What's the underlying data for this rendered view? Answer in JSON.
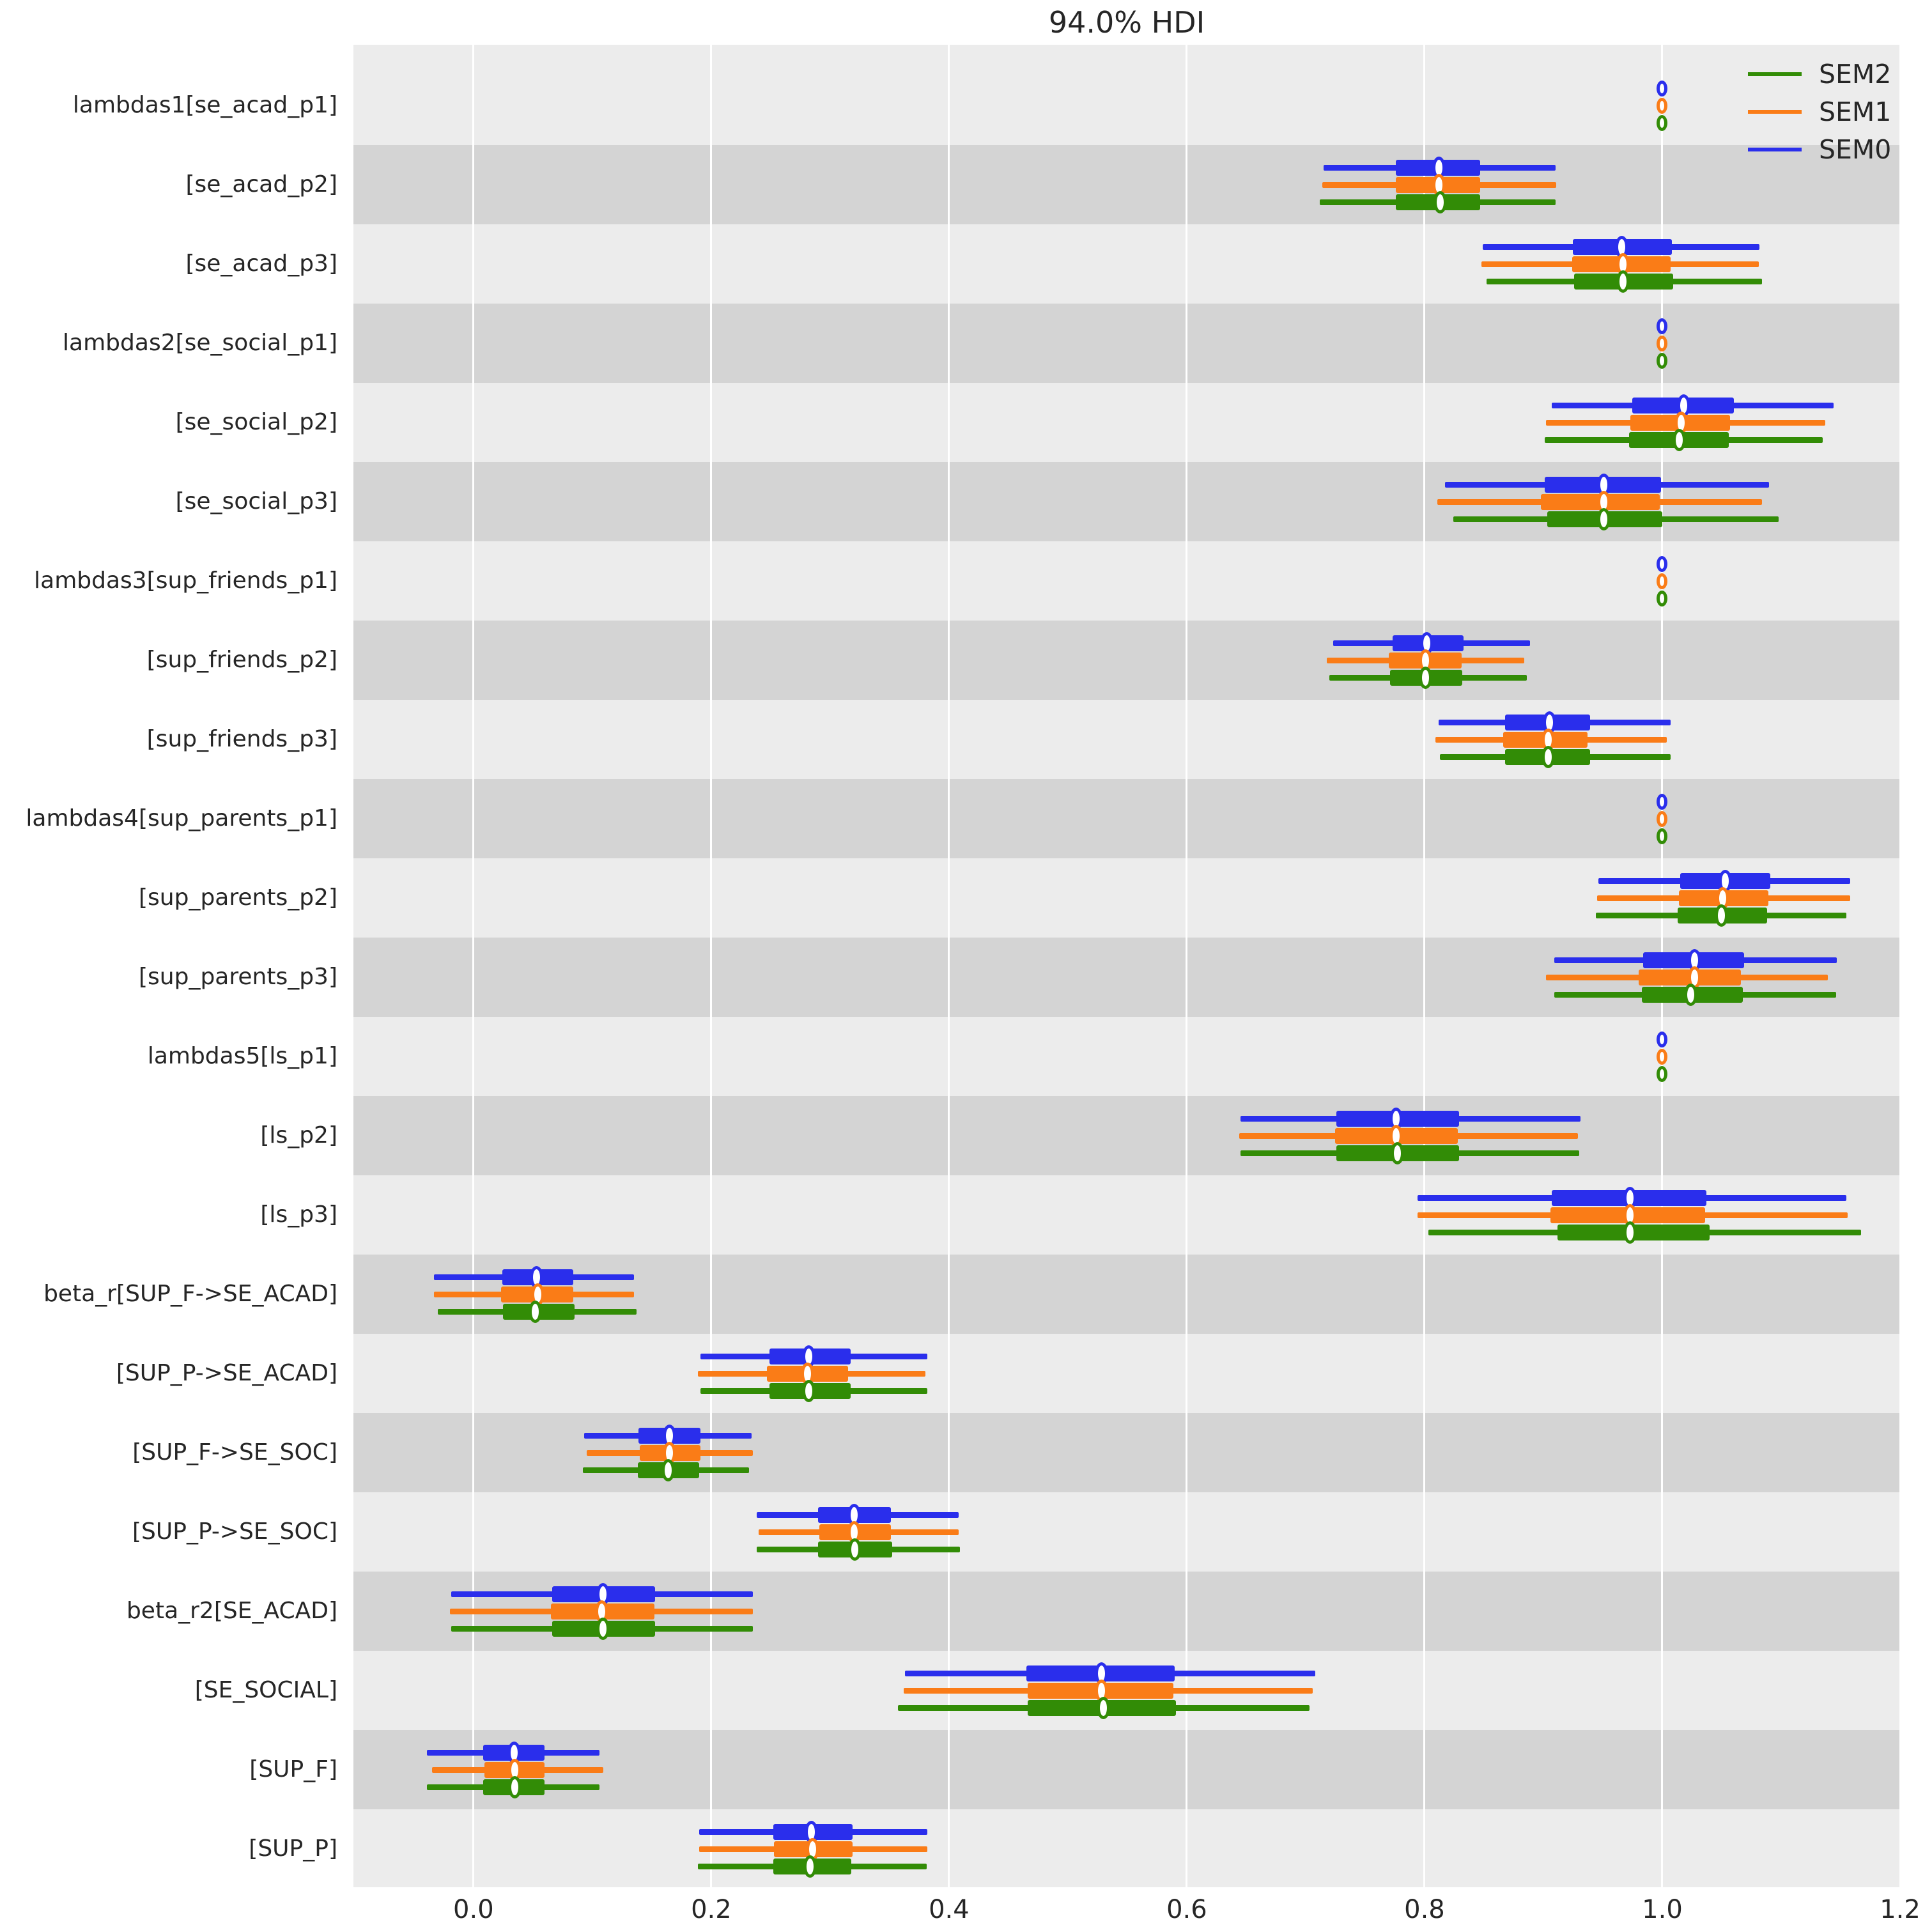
{
  "title": "94.0% HDI",
  "colors": {
    "SEM0": "#2a2eec",
    "SEM1": "#fa7c17",
    "SEM2": "#328c06",
    "band_light": "#ececec",
    "band_dark": "#d4d4d4",
    "grid": "#ffffff",
    "text": "#262626"
  },
  "legend": [
    {
      "label": "SEM2",
      "color_key": "SEM2"
    },
    {
      "label": "SEM1",
      "color_key": "SEM1"
    },
    {
      "label": "SEM0",
      "color_key": "SEM0"
    }
  ],
  "chart_data": {
    "type": "forest",
    "title": "94.0% HDI",
    "interval_probability": "94.0%",
    "legend_position": "upper right",
    "xlabel": "",
    "ylabel": "",
    "xlim": [
      -0.101,
      1.2
    ],
    "x_ticks": [
      "0.0",
      "0.2",
      "0.4",
      "0.6",
      "0.8",
      "1.0",
      "1.2"
    ],
    "x_tick_values": [
      0.0,
      0.2,
      0.4,
      0.6,
      0.8,
      1.0,
      1.2
    ],
    "grid": "vertical-white",
    "model_draw_order": [
      "SEM0",
      "SEM1",
      "SEM2"
    ],
    "rows": [
      {
        "label": "lambdas1[se_acad_p1]",
        "kind": "point",
        "models": {
          "SEM0": {
            "value": 1.0
          },
          "SEM1": {
            "value": 1.0
          },
          "SEM2": {
            "value": 1.0
          }
        }
      },
      {
        "label": "[se_acad_p2]",
        "kind": "interval",
        "models": {
          "SEM0": {
            "hdi": [
              0.715,
              0.91
            ],
            "quartile": [
              0.776,
              0.847
            ],
            "median": 0.812
          },
          "SEM1": {
            "hdi": [
              0.714,
              0.911
            ],
            "quartile": [
              0.776,
              0.847
            ],
            "median": 0.812
          },
          "SEM2": {
            "hdi": [
              0.712,
              0.91
            ],
            "quartile": [
              0.776,
              0.847
            ],
            "median": 0.813
          }
        }
      },
      {
        "label": "[se_acad_p3]",
        "kind": "interval",
        "models": {
          "SEM0": {
            "hdi": [
              0.849,
              1.082
            ],
            "quartile": [
              0.925,
              1.008
            ],
            "median": 0.966
          },
          "SEM1": {
            "hdi": [
              0.848,
              1.081
            ],
            "quartile": [
              0.924,
              1.007
            ],
            "median": 0.967
          },
          "SEM2": {
            "hdi": [
              0.852,
              1.084
            ],
            "quartile": [
              0.926,
              1.009
            ],
            "median": 0.967
          }
        }
      },
      {
        "label": "lambdas2[se_social_p1]",
        "kind": "point",
        "models": {
          "SEM0": {
            "value": 1.0
          },
          "SEM1": {
            "value": 1.0
          },
          "SEM2": {
            "value": 1.0
          }
        }
      },
      {
        "label": "[se_social_p2]",
        "kind": "interval",
        "models": {
          "SEM0": {
            "hdi": [
              0.907,
              1.144
            ],
            "quartile": [
              0.975,
              1.06
            ],
            "median": 1.018
          },
          "SEM1": {
            "hdi": [
              0.902,
              1.137
            ],
            "quartile": [
              0.973,
              1.057
            ],
            "median": 1.016
          },
          "SEM2": {
            "hdi": [
              0.901,
              1.135
            ],
            "quartile": [
              0.972,
              1.056
            ],
            "median": 1.014
          }
        }
      },
      {
        "label": "[se_social_p3]",
        "kind": "interval",
        "models": {
          "SEM0": {
            "hdi": [
              0.817,
              1.09
            ],
            "quartile": [
              0.901,
              0.999
            ],
            "median": 0.951
          },
          "SEM1": {
            "hdi": [
              0.811,
              1.084
            ],
            "quartile": [
              0.898,
              0.998
            ],
            "median": 0.951
          },
          "SEM2": {
            "hdi": [
              0.824,
              1.098
            ],
            "quartile": [
              0.903,
              1.0
            ],
            "median": 0.951
          }
        }
      },
      {
        "label": "lambdas3[sup_friends_p1]",
        "kind": "point",
        "models": {
          "SEM0": {
            "value": 1.0
          },
          "SEM1": {
            "value": 1.0
          },
          "SEM2": {
            "value": 1.0
          }
        }
      },
      {
        "label": "[sup_friends_p2]",
        "kind": "interval",
        "models": {
          "SEM0": {
            "hdi": [
              0.723,
              0.889
            ],
            "quartile": [
              0.773,
              0.833
            ],
            "median": 0.802
          },
          "SEM1": {
            "hdi": [
              0.718,
              0.884
            ],
            "quartile": [
              0.77,
              0.831
            ],
            "median": 0.801
          },
          "SEM2": {
            "hdi": [
              0.72,
              0.886
            ],
            "quartile": [
              0.771,
              0.832
            ],
            "median": 0.801
          }
        }
      },
      {
        "label": "[sup_friends_p3]",
        "kind": "interval",
        "models": {
          "SEM0": {
            "hdi": [
              0.812,
              1.007
            ],
            "quartile": [
              0.868,
              0.939
            ],
            "median": 0.905
          },
          "SEM1": {
            "hdi": [
              0.809,
              1.004
            ],
            "quartile": [
              0.866,
              0.937
            ],
            "median": 0.904
          },
          "SEM2": {
            "hdi": [
              0.813,
              1.007
            ],
            "quartile": [
              0.868,
              0.939
            ],
            "median": 0.904
          }
        }
      },
      {
        "label": "lambdas4[sup_parents_p1]",
        "kind": "point",
        "models": {
          "SEM0": {
            "value": 1.0
          },
          "SEM1": {
            "value": 1.0
          },
          "SEM2": {
            "value": 1.0
          }
        }
      },
      {
        "label": "[sup_parents_p2]",
        "kind": "interval",
        "models": {
          "SEM0": {
            "hdi": [
              0.946,
              1.158
            ],
            "quartile": [
              1.015,
              1.091
            ],
            "median": 1.053
          },
          "SEM1": {
            "hdi": [
              0.945,
              1.158
            ],
            "quartile": [
              1.014,
              1.089
            ],
            "median": 1.051
          },
          "SEM2": {
            "hdi": [
              0.944,
              1.155
            ],
            "quartile": [
              1.013,
              1.088
            ],
            "median": 1.05
          }
        }
      },
      {
        "label": "[sup_parents_p3]",
        "kind": "interval",
        "models": {
          "SEM0": {
            "hdi": [
              0.909,
              1.147
            ],
            "quartile": [
              0.984,
              1.069
            ],
            "median": 1.027
          },
          "SEM1": {
            "hdi": [
              0.902,
              1.139
            ],
            "quartile": [
              0.98,
              1.066
            ],
            "median": 1.027
          },
          "SEM2": {
            "hdi": [
              0.909,
              1.146
            ],
            "quartile": [
              0.983,
              1.068
            ],
            "median": 1.024
          }
        }
      },
      {
        "label": "lambdas5[ls_p1]",
        "kind": "point",
        "models": {
          "SEM0": {
            "value": 1.0
          },
          "SEM1": {
            "value": 1.0
          },
          "SEM2": {
            "value": 1.0
          }
        }
      },
      {
        "label": "[ls_p2]",
        "kind": "interval",
        "models": {
          "SEM0": {
            "hdi": [
              0.645,
              0.931
            ],
            "quartile": [
              0.726,
              0.829
            ],
            "median": 0.776
          },
          "SEM1": {
            "hdi": [
              0.644,
              0.929
            ],
            "quartile": [
              0.725,
              0.828
            ],
            "median": 0.776
          },
          "SEM2": {
            "hdi": [
              0.645,
              0.93
            ],
            "quartile": [
              0.726,
              0.829
            ],
            "median": 0.777
          }
        }
      },
      {
        "label": "[ls_p3]",
        "kind": "interval",
        "models": {
          "SEM0": {
            "hdi": [
              0.794,
              1.155
            ],
            "quartile": [
              0.907,
              1.037
            ],
            "median": 0.973
          },
          "SEM1": {
            "hdi": [
              0.794,
              1.156
            ],
            "quartile": [
              0.906,
              1.036
            ],
            "median": 0.973
          },
          "SEM2": {
            "hdi": [
              0.803,
              1.167
            ],
            "quartile": [
              0.912,
              1.04
            ],
            "median": 0.973
          }
        }
      },
      {
        "label": "beta_r[SUP_F->SE_ACAD]",
        "kind": "interval",
        "models": {
          "SEM0": {
            "hdi": [
              -0.033,
              0.135
            ],
            "quartile": [
              0.024,
              0.084
            ],
            "median": 0.053
          },
          "SEM1": {
            "hdi": [
              -0.033,
              0.135
            ],
            "quartile": [
              0.023,
              0.084
            ],
            "median": 0.054
          },
          "SEM2": {
            "hdi": [
              -0.03,
              0.137
            ],
            "quartile": [
              0.025,
              0.085
            ],
            "median": 0.052
          }
        }
      },
      {
        "label": "[SUP_P->SE_ACAD]",
        "kind": "interval",
        "models": {
          "SEM0": {
            "hdi": [
              0.191,
              0.382
            ],
            "quartile": [
              0.249,
              0.317
            ],
            "median": 0.282
          },
          "SEM1": {
            "hdi": [
              0.189,
              0.38
            ],
            "quartile": [
              0.247,
              0.315
            ],
            "median": 0.281
          },
          "SEM2": {
            "hdi": [
              0.191,
              0.382
            ],
            "quartile": [
              0.249,
              0.317
            ],
            "median": 0.282
          }
        }
      },
      {
        "label": "[SUP_F->SE_SOC]",
        "kind": "interval",
        "models": {
          "SEM0": {
            "hdi": [
              0.093,
              0.234
            ],
            "quartile": [
              0.139,
              0.191
            ],
            "median": 0.165
          },
          "SEM1": {
            "hdi": [
              0.095,
              0.235
            ],
            "quartile": [
              0.14,
              0.191
            ],
            "median": 0.165
          },
          "SEM2": {
            "hdi": [
              0.092,
              0.232
            ],
            "quartile": [
              0.138,
              0.19
            ],
            "median": 0.164
          }
        }
      },
      {
        "label": "[SUP_P->SE_SOC]",
        "kind": "interval",
        "models": {
          "SEM0": {
            "hdi": [
              0.238,
              0.408
            ],
            "quartile": [
              0.29,
              0.351
            ],
            "median": 0.32
          },
          "SEM1": {
            "hdi": [
              0.24,
              0.408
            ],
            "quartile": [
              0.291,
              0.351
            ],
            "median": 0.32
          },
          "SEM2": {
            "hdi": [
              0.238,
              0.409
            ],
            "quartile": [
              0.29,
              0.352
            ],
            "median": 0.321
          }
        }
      },
      {
        "label": "beta_r2[SE_ACAD]",
        "kind": "interval",
        "models": {
          "SEM0": {
            "hdi": [
              -0.019,
              0.235
            ],
            "quartile": [
              0.066,
              0.153
            ],
            "median": 0.109
          },
          "SEM1": {
            "hdi": [
              -0.02,
              0.235
            ],
            "quartile": [
              0.065,
              0.152
            ],
            "median": 0.108
          },
          "SEM2": {
            "hdi": [
              -0.019,
              0.235
            ],
            "quartile": [
              0.066,
              0.153
            ],
            "median": 0.109
          }
        }
      },
      {
        "label": "[SE_SOCIAL]",
        "kind": "interval",
        "models": {
          "SEM0": {
            "hdi": [
              0.363,
              0.708
            ],
            "quartile": [
              0.465,
              0.59
            ],
            "median": 0.528
          },
          "SEM1": {
            "hdi": [
              0.362,
              0.706
            ],
            "quartile": [
              0.466,
              0.589
            ],
            "median": 0.528
          },
          "SEM2": {
            "hdi": [
              0.357,
              0.703
            ],
            "quartile": [
              0.466,
              0.591
            ],
            "median": 0.53
          }
        }
      },
      {
        "label": "[SUP_F]",
        "kind": "interval",
        "models": {
          "SEM0": {
            "hdi": [
              -0.039,
              0.106
            ],
            "quartile": [
              0.008,
              0.06
            ],
            "median": 0.034
          },
          "SEM1": {
            "hdi": [
              -0.035,
              0.109
            ],
            "quartile": [
              0.009,
              0.06
            ],
            "median": 0.035
          },
          "SEM2": {
            "hdi": [
              -0.039,
              0.106
            ],
            "quartile": [
              0.008,
              0.06
            ],
            "median": 0.035
          }
        }
      },
      {
        "label": "[SUP_P]",
        "kind": "interval",
        "models": {
          "SEM0": {
            "hdi": [
              0.19,
              0.382
            ],
            "quartile": [
              0.252,
              0.319
            ],
            "median": 0.284
          },
          "SEM1": {
            "hdi": [
              0.19,
              0.382
            ],
            "quartile": [
              0.253,
              0.319
            ],
            "median": 0.285
          },
          "SEM2": {
            "hdi": [
              0.189,
              0.381
            ],
            "quartile": [
              0.252,
              0.318
            ],
            "median": 0.283
          }
        }
      }
    ]
  }
}
